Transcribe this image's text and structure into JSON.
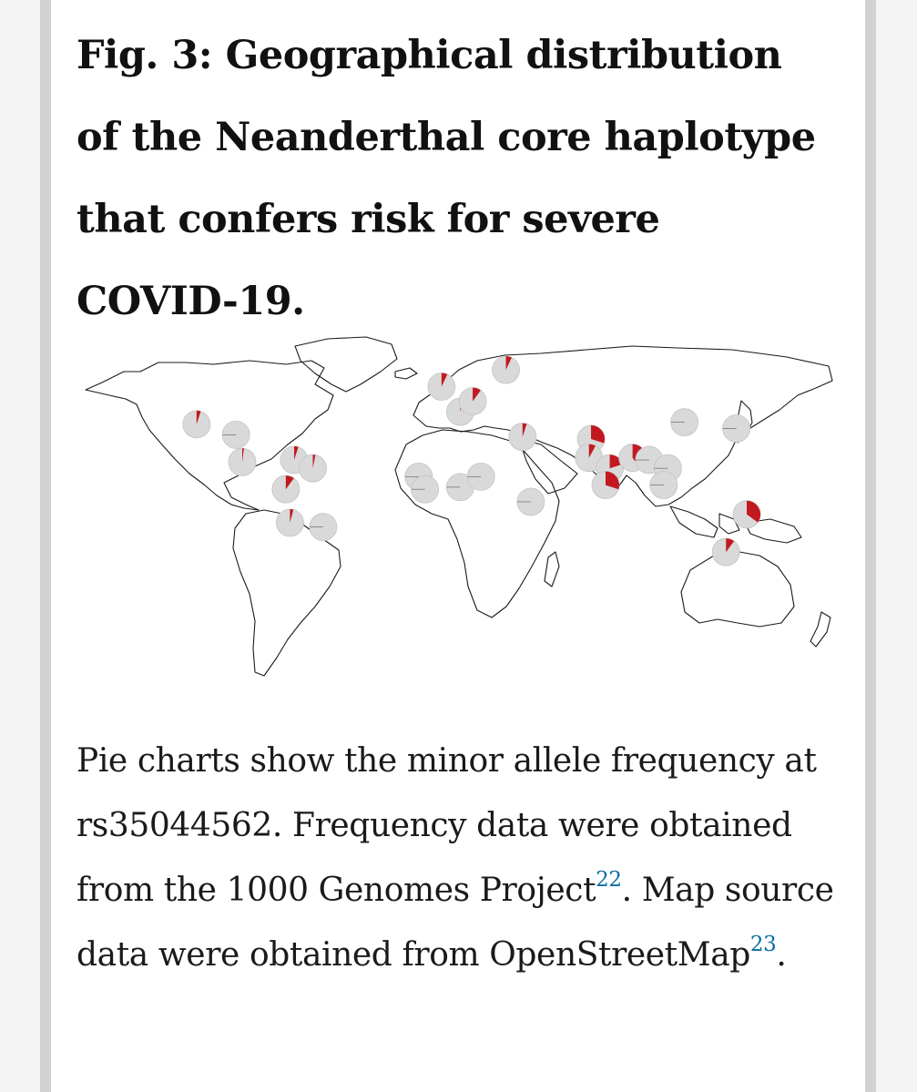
{
  "figure": {
    "title": "Fig. 3: Geographical distribution of the Neanderthal core haplotype that confers risk for severe COVID-19."
  },
  "caption": {
    "text_1": "Pie charts show the minor allele frequency at rs35044562. Frequency data were obtained from the 1000 Genomes Project",
    "ref_1": "22",
    "text_2": ". Map source data were obtained from OpenStreetMap",
    "ref_2": "23",
    "text_3": "."
  },
  "colors": {
    "risk_allele": "#c1191f",
    "other_allele": "#d9d9d9",
    "reference_link": "#0b6fa4"
  },
  "chart_data": {
    "type": "pie-map",
    "value_meaning": "fraction of each pie in red (minor allele frequency at rs35044562), read from the pie size",
    "pies": [
      {
        "lon": -122,
        "lat": 37,
        "value": 0.05
      },
      {
        "lon": -103,
        "lat": 32,
        "value": 0.0
      },
      {
        "lon": -100,
        "lat": 19,
        "value": 0.02
      },
      {
        "lon": -75,
        "lat": 20,
        "value": 0.05
      },
      {
        "lon": -66,
        "lat": 16,
        "value": 0.03
      },
      {
        "lon": -79,
        "lat": 6,
        "value": 0.1
      },
      {
        "lon": -77,
        "lat": -10,
        "value": 0.04
      },
      {
        "lon": -61,
        "lat": -12,
        "value": 0.0
      },
      {
        "lon": -4,
        "lat": 55,
        "value": 0.07
      },
      {
        "lon": 5,
        "lat": 43,
        "value": 0.04
      },
      {
        "lon": 11,
        "lat": 48,
        "value": 0.1
      },
      {
        "lon": 27,
        "lat": 63,
        "value": 0.07
      },
      {
        "lon": 35,
        "lat": 31,
        "value": 0.05
      },
      {
        "lon": -15,
        "lat": 12,
        "value": 0.0
      },
      {
        "lon": -12,
        "lat": 6,
        "value": 0.0
      },
      {
        "lon": 5,
        "lat": 7,
        "value": 0.0
      },
      {
        "lon": 15,
        "lat": 12,
        "value": 0.0
      },
      {
        "lon": 39,
        "lat": 0,
        "value": 0.0
      },
      {
        "lon": 68,
        "lat": 30,
        "value": 0.3
      },
      {
        "lon": 67,
        "lat": 21,
        "value": 0.08
      },
      {
        "lon": 77,
        "lat": 16,
        "value": 0.2
      },
      {
        "lon": 75,
        "lat": 8,
        "value": 0.3
      },
      {
        "lon": 88,
        "lat": 21,
        "value": 0.4
      },
      {
        "lon": 96,
        "lat": 20,
        "value": 0.0
      },
      {
        "lon": 105,
        "lat": 16,
        "value": 0.0
      },
      {
        "lon": 103,
        "lat": 8,
        "value": 0.0
      },
      {
        "lon": 113,
        "lat": 38,
        "value": 0.0
      },
      {
        "lon": 138,
        "lat": 35,
        "value": 0.0
      },
      {
        "lon": 143,
        "lat": -6,
        "value": 0.35
      },
      {
        "lon": 133,
        "lat": -24,
        "value": 0.1
      }
    ]
  }
}
